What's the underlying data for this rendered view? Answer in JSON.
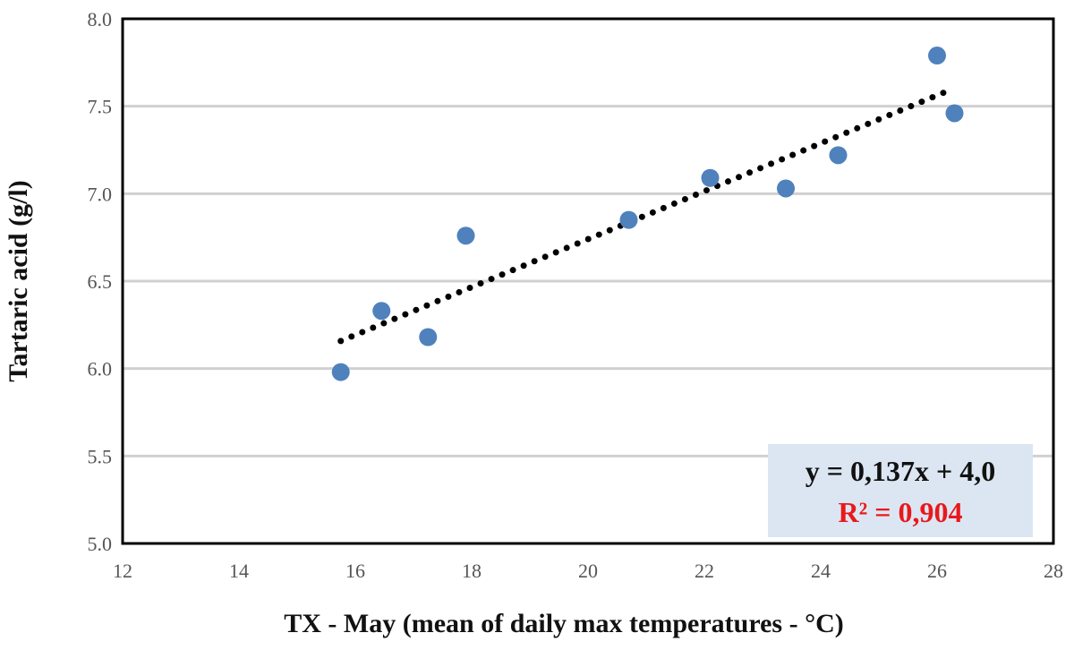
{
  "chart_data": {
    "type": "scatter",
    "xlabel": "TX - May (mean of daily max temperatures - °C)",
    "ylabel": "Tartaric acid (g/l)",
    "xlim": [
      12,
      28
    ],
    "ylim": [
      5.0,
      8.0
    ],
    "x_ticks": [
      "12",
      "14",
      "16",
      "18",
      "20",
      "22",
      "24",
      "26",
      "28"
    ],
    "y_ticks": [
      "5.0",
      "5.5",
      "6.0",
      "6.5",
      "7.0",
      "7.5",
      "8.0"
    ],
    "grid": "horizontal",
    "series": [
      {
        "points": [
          {
            "x": 15.75,
            "y": 5.98
          },
          {
            "x": 16.45,
            "y": 6.33
          },
          {
            "x": 17.25,
            "y": 6.18
          },
          {
            "x": 17.9,
            "y": 6.76
          },
          {
            "x": 20.7,
            "y": 6.85
          },
          {
            "x": 22.1,
            "y": 7.09
          },
          {
            "x": 23.4,
            "y": 7.03
          },
          {
            "x": 24.3,
            "y": 7.22
          },
          {
            "x": 26.0,
            "y": 7.79
          },
          {
            "x": 26.3,
            "y": 7.46
          }
        ],
        "color": "#4f81bd"
      }
    ],
    "trendline": {
      "slope": 0.137,
      "intercept": 4.0,
      "x_range": [
        15.75,
        26.25
      ],
      "style": "dotted",
      "color": "#000000"
    },
    "annotation": {
      "equation": "y = 0,137x + 4,0",
      "r_squared": "R² = 0,904",
      "placement": "bottom-right",
      "background": "#dce6f2",
      "r_squared_color": "#e8191c"
    }
  }
}
